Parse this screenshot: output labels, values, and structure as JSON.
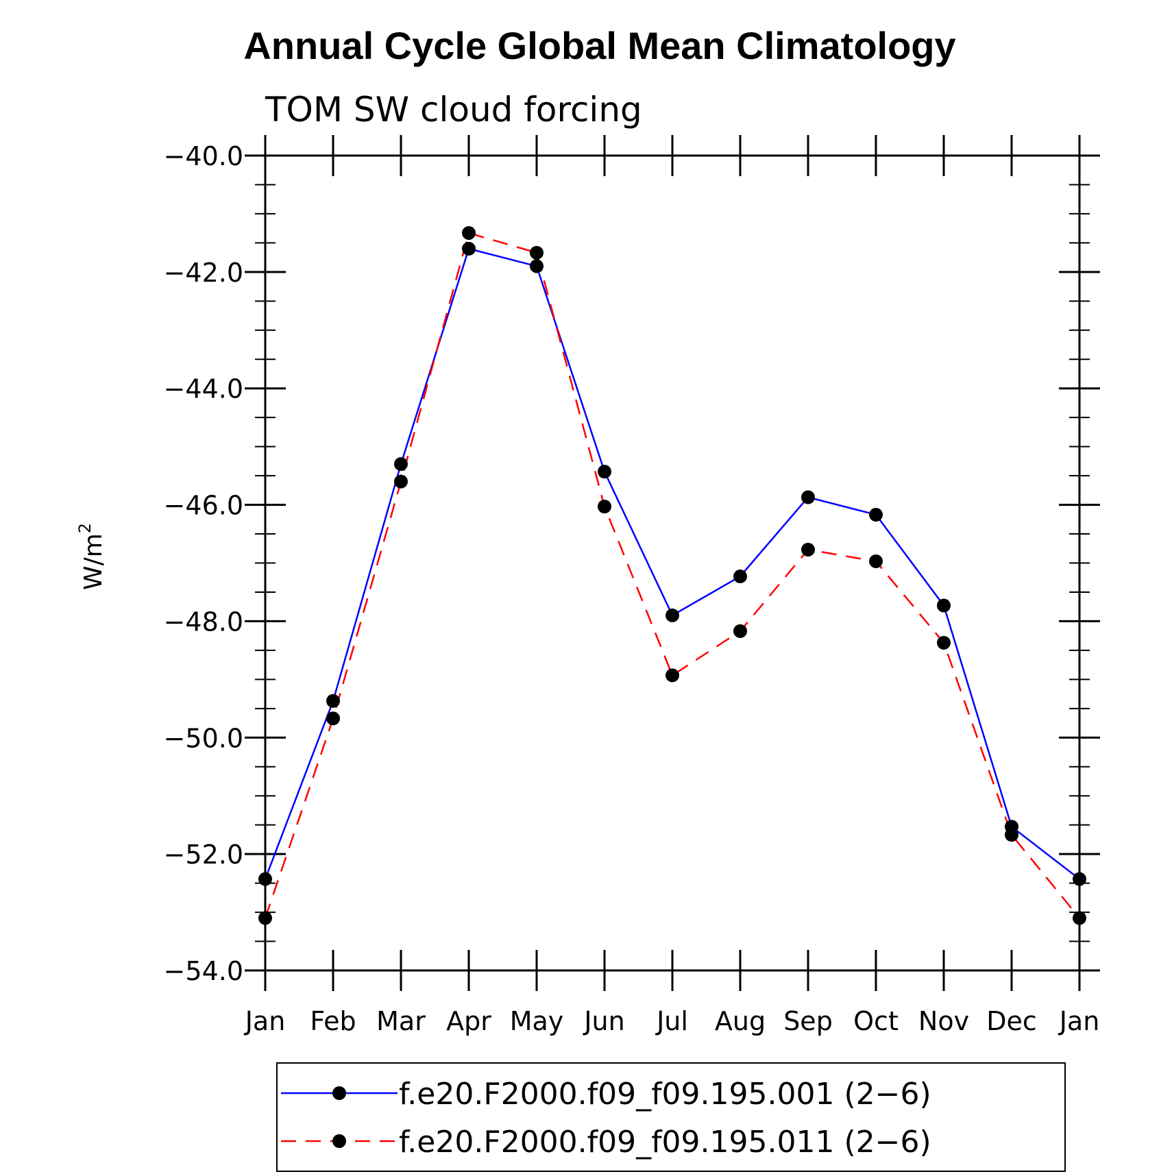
{
  "chart_data": {
    "type": "line",
    "title": "Annual Cycle Global Mean Climatology",
    "subtitle": "TOM SW cloud forcing",
    "ylabel": "W/m",
    "ylabel_sup": "2",
    "xlabel": "",
    "categories": [
      "Jan",
      "Feb",
      "Mar",
      "Apr",
      "May",
      "Jun",
      "Jul",
      "Aug",
      "Sep",
      "Oct",
      "Nov",
      "Dec",
      "Jan"
    ],
    "ylim": [
      -54.0,
      -40.0
    ],
    "yticks": [
      -54.0,
      -52.0,
      -50.0,
      -48.0,
      -46.0,
      -44.0,
      -42.0,
      -40.0
    ],
    "ytick_labels": [
      "−54.0",
      "−52.0",
      "−50.0",
      "−48.0",
      "−46.0",
      "−44.0",
      "−42.0",
      "−40.0"
    ],
    "grid": false,
    "legend_position": "bottom",
    "series": [
      {
        "name": "f.e20.F2000.f09_f09.195.001 (2−6)",
        "color": "#0000ff",
        "dash": "solid",
        "marker": "filled-circle",
        "values": [
          -52.43,
          -49.37,
          -45.3,
          -41.6,
          -41.9,
          -45.43,
          -47.9,
          -47.23,
          -45.87,
          -46.17,
          -47.73,
          -51.53,
          -52.43
        ]
      },
      {
        "name": "f.e20.F2000.f09_f09.195.011 (2−6)",
        "color": "#ff0000",
        "dash": "dashed",
        "marker": "filled-circle",
        "values": [
          -53.1,
          -49.67,
          -45.6,
          -41.33,
          -41.67,
          -46.03,
          -48.93,
          -48.17,
          -46.77,
          -46.97,
          -48.37,
          -51.67,
          -53.1
        ]
      }
    ]
  }
}
